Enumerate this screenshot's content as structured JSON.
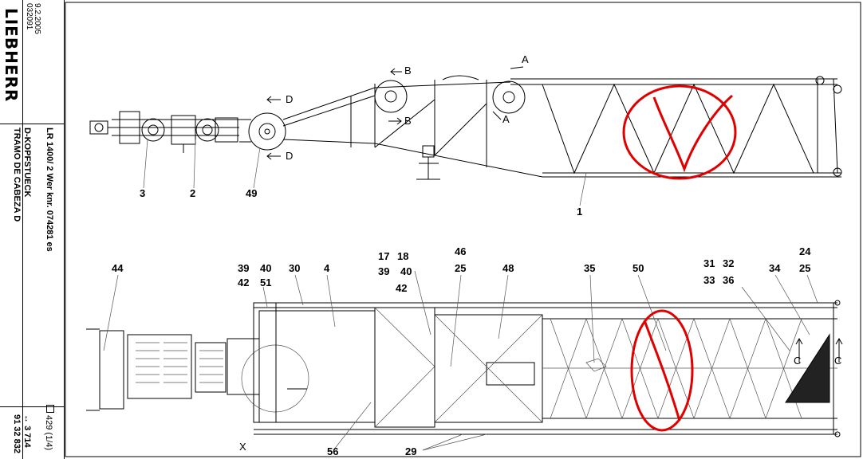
{
  "title_block": {
    "brand": "LIEBHERR",
    "date": "9.2.2005",
    "doc_code": "032091",
    "machine": "LR 1400/ 2 Wer knr. 074281 es",
    "part_name_de": "D-KOPFSTUECK",
    "part_name_es": "TRAMO DE CABEZA D",
    "sheet_ref": "429 (1/4)",
    "page_ref": "3 714",
    "drawing_no": "91 32 832"
  },
  "side_view": {
    "section_marks": [
      "A",
      "A",
      "B",
      "B",
      "D",
      "D"
    ],
    "callouts": [
      "3",
      "2",
      "49",
      "1"
    ]
  },
  "top_view": {
    "section_marks": [
      "C",
      "C",
      "X"
    ],
    "callouts": [
      "44",
      "39",
      "40",
      "30",
      "42",
      "51",
      "4",
      "17",
      "18",
      "39",
      "40",
      "42",
      "46",
      "25",
      "48",
      "35",
      "50",
      "31",
      "32",
      "33",
      "36",
      "34",
      "24",
      "25",
      "56",
      "29"
    ]
  },
  "markup": {
    "color": "#e00000",
    "note_shapes": [
      "circle",
      "check-mark"
    ]
  }
}
